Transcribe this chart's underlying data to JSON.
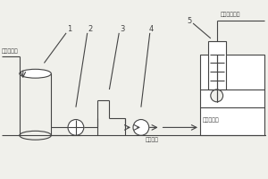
{
  "bg_color": "#f0f0eb",
  "line_color": "#444444",
  "labels": {
    "left_text": "塔的废次钠",
    "label1": "1",
    "label2": "2",
    "label3": "3",
    "label4": "4",
    "label5": "5",
    "right_top_text": "去水环压缩机",
    "right_bottom_text": "去废次钠罐",
    "mid_text": "低压蒸汽"
  },
  "figsize": [
    3.0,
    2.0
  ],
  "dpi": 100
}
